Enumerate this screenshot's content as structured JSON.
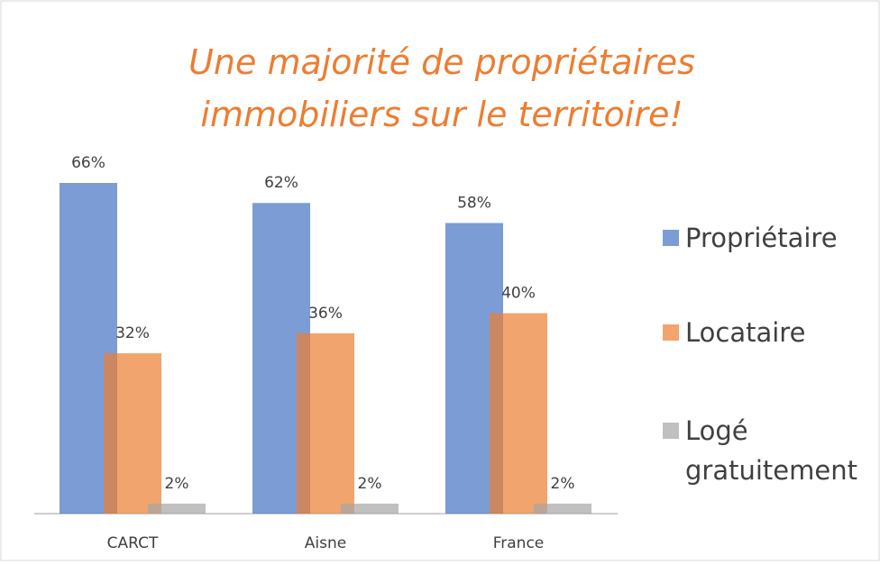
{
  "chart_data": {
    "type": "bar",
    "title": "Une majorité de propriétaires immobiliers sur le territoire!",
    "categories": [
      "CARCT",
      "Aisne",
      "France"
    ],
    "series": [
      {
        "name": "Propriétaire",
        "color": "#4472c4",
        "values": [
          66,
          62,
          58
        ],
        "value_labels": [
          "66%",
          "62%",
          "58%"
        ]
      },
      {
        "name": "Locataire",
        "color": "#ed7d31",
        "values": [
          32,
          36,
          40
        ],
        "value_labels": [
          "32%",
          "36%",
          "40%"
        ]
      },
      {
        "name": "Logé gratuitement",
        "color": "#a5a5a5",
        "values": [
          2,
          2,
          2
        ],
        "value_labels": [
          "2%",
          "2%",
          "2%"
        ]
      }
    ],
    "legend": "right"
  }
}
